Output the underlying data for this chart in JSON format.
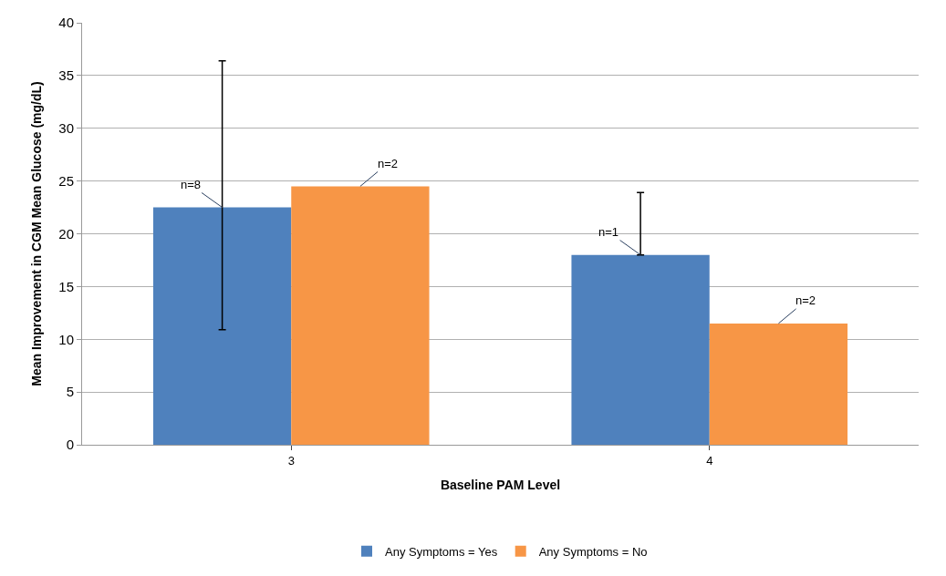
{
  "chart_data": {
    "type": "bar",
    "xlabel": "Baseline PAM Level",
    "ylabel": "Mean Improvement in CGM Mean Glucose (mg/dL)",
    "categories": [
      "3",
      "4"
    ],
    "series": [
      {
        "name": "Any Symptoms = Yes",
        "color": "#4f81bd",
        "values": [
          22.5,
          18
        ],
        "errors": [
          [
            10.9,
            36.4
          ],
          [
            18,
            23.9
          ]
        ]
      },
      {
        "name": "Any Symptoms = No",
        "color": "#f79646",
        "values": [
          24.5,
          11.5
        ]
      }
    ],
    "annotations": [
      {
        "text": "n=8",
        "y": 22.5
      },
      {
        "text": "n=2",
        "y": 24.5
      },
      {
        "text": "n=1",
        "y": 18
      },
      {
        "text": "n=2",
        "y": 11.5
      }
    ],
    "ylim": [
      0,
      40
    ],
    "yticks": [
      0,
      5,
      10,
      15,
      20,
      25,
      30,
      35,
      40
    ],
    "grid": "y",
    "legend": "bottom"
  }
}
